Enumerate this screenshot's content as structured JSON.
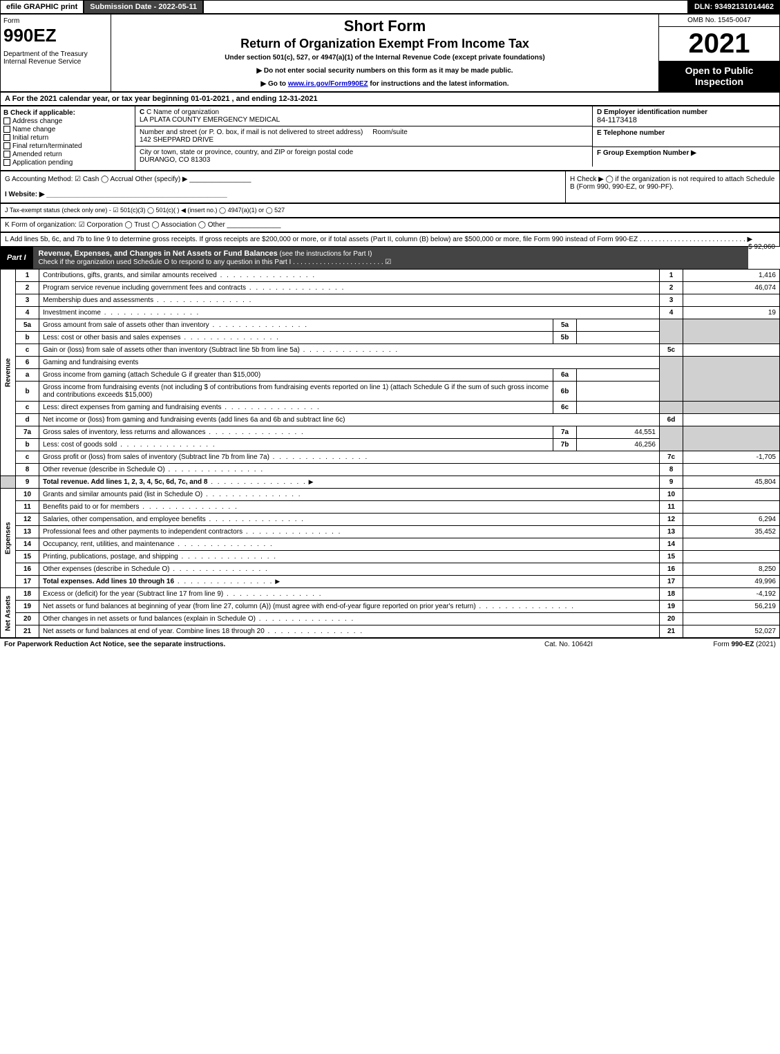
{
  "topbar": {
    "efile": "efile GRAPHIC print",
    "subdate": "Submission Date - 2022-05-11",
    "dln": "DLN: 93492131014462"
  },
  "header": {
    "form_word": "Form",
    "form_no": "990EZ",
    "dept": "Department of the Treasury\nInternal Revenue Service",
    "title1": "Short Form",
    "title2": "Return of Organization Exempt From Income Tax",
    "subtitle": "Under section 501(c), 527, or 4947(a)(1) of the Internal Revenue Code (except private foundations)",
    "instr1": "▶ Do not enter social security numbers on this form as it may be made public.",
    "instr2_pre": "▶ Go to ",
    "instr2_link": "www.irs.gov/Form990EZ",
    "instr2_post": " for instructions and the latest information.",
    "omb": "OMB No. 1545-0047",
    "year": "2021",
    "openbox": "Open to Public Inspection"
  },
  "rowA": "A  For the 2021 calendar year, or tax year beginning 01-01-2021 , and ending 12-31-2021",
  "boxB": {
    "label": "B  Check if applicable:",
    "opts": [
      "Address change",
      "Name change",
      "Initial return",
      "Final return/terminated",
      "Amended return",
      "Application pending"
    ]
  },
  "boxC": {
    "name_lbl": "C Name of organization",
    "name_val": "LA PLATA COUNTY EMERGENCY MEDICAL",
    "addr_lbl": "Number and street (or P. O. box, if mail is not delivered to street address)",
    "room_lbl": "Room/suite",
    "addr_val": "142 SHEPPARD DRIVE",
    "city_lbl": "City or town, state or province, country, and ZIP or foreign postal code",
    "city_val": "DURANGO, CO  81303"
  },
  "boxD": {
    "lbl": "D Employer identification number",
    "val": "84-1173418"
  },
  "boxE": {
    "lbl": "E Telephone number",
    "val": ""
  },
  "boxF": {
    "lbl": "F Group Exemption Number  ▶",
    "val": ""
  },
  "boxG": "G Accounting Method:   ☑ Cash  ◯ Accrual   Other (specify) ▶ ________________",
  "boxH": "H  Check ▶  ◯ if the organization is not required to attach Schedule B (Form 990, 990-EZ, or 990-PF).",
  "boxI": "I Website: ▶ _______________________________________________",
  "boxJ": "J Tax-exempt status (check only one) - ☑ 501(c)(3)  ◯ 501(c)(  ) ◀ (insert no.)  ◯ 4947(a)(1) or  ◯ 527",
  "boxK": "K Form of organization:  ☑ Corporation  ◯ Trust  ◯ Association  ◯ Other  ______________",
  "boxL": {
    "text": "L Add lines 5b, 6c, and 7b to line 9 to determine gross receipts. If gross receipts are $200,000 or more, or if total assets (Part II, column (B) below) are $500,000 or more, file Form 990 instead of Form 990-EZ  .  .  .  .  .  .  .  .  .  .  .  .  .  .  .  .  .  .  .  .  .  .  .  .  .  .  .  .  ▶",
    "amt": "$ 92,060"
  },
  "part1": {
    "label": "Part I",
    "title": "Revenue, Expenses, and Changes in Net Assets or Fund Balances",
    "sub": " (see the instructions for Part I)",
    "check_line": "Check if the organization used Schedule O to respond to any question in this Part I  .  .  .  .  .  .  .  .  .  .  .  .  .  .  .  .  .  .  .  .  .  .  .  .  ☑"
  },
  "sides": {
    "revenue": "Revenue",
    "expenses": "Expenses",
    "netassets": "Net Assets"
  },
  "lines": {
    "l1": {
      "n": "1",
      "t": "Contributions, gifts, grants, and similar amounts received",
      "r": "1",
      "v": "1,416"
    },
    "l2": {
      "n": "2",
      "t": "Program service revenue including government fees and contracts",
      "r": "2",
      "v": "46,074"
    },
    "l3": {
      "n": "3",
      "t": "Membership dues and assessments",
      "r": "3",
      "v": ""
    },
    "l4": {
      "n": "4",
      "t": "Investment income",
      "r": "4",
      "v": "19"
    },
    "l5a": {
      "n": "5a",
      "t": "Gross amount from sale of assets other than inventory",
      "m": "5a",
      "mv": ""
    },
    "l5b": {
      "n": "b",
      "t": "Less: cost or other basis and sales expenses",
      "m": "5b",
      "mv": ""
    },
    "l5c": {
      "n": "c",
      "t": "Gain or (loss) from sale of assets other than inventory (Subtract line 5b from line 5a)",
      "r": "5c",
      "v": ""
    },
    "l6": {
      "n": "6",
      "t": "Gaming and fundraising events"
    },
    "l6a": {
      "n": "a",
      "t": "Gross income from gaming (attach Schedule G if greater than $15,000)",
      "m": "6a",
      "mv": ""
    },
    "l6b": {
      "n": "b",
      "t": "Gross income from fundraising events (not including $                     of contributions from fundraising events reported on line 1) (attach Schedule G if the sum of such gross income and contributions exceeds $15,000)",
      "m": "6b",
      "mv": ""
    },
    "l6c": {
      "n": "c",
      "t": "Less: direct expenses from gaming and fundraising events",
      "m": "6c",
      "mv": ""
    },
    "l6d": {
      "n": "d",
      "t": "Net income or (loss) from gaming and fundraising events (add lines 6a and 6b and subtract line 6c)",
      "r": "6d",
      "v": ""
    },
    "l7a": {
      "n": "7a",
      "t": "Gross sales of inventory, less returns and allowances",
      "m": "7a",
      "mv": "44,551"
    },
    "l7b": {
      "n": "b",
      "t": "Less: cost of goods sold",
      "m": "7b",
      "mv": "46,256"
    },
    "l7c": {
      "n": "c",
      "t": "Gross profit or (loss) from sales of inventory (Subtract line 7b from line 7a)",
      "r": "7c",
      "v": "-1,705"
    },
    "l8": {
      "n": "8",
      "t": "Other revenue (describe in Schedule O)",
      "r": "8",
      "v": ""
    },
    "l9": {
      "n": "9",
      "t": "Total revenue. Add lines 1, 2, 3, 4, 5c, 6d, 7c, and 8",
      "r": "9",
      "v": "45,804",
      "bold": true,
      "arrow": true
    },
    "l10": {
      "n": "10",
      "t": "Grants and similar amounts paid (list in Schedule O)",
      "r": "10",
      "v": ""
    },
    "l11": {
      "n": "11",
      "t": "Benefits paid to or for members",
      "r": "11",
      "v": ""
    },
    "l12": {
      "n": "12",
      "t": "Salaries, other compensation, and employee benefits",
      "r": "12",
      "v": "6,294"
    },
    "l13": {
      "n": "13",
      "t": "Professional fees and other payments to independent contractors",
      "r": "13",
      "v": "35,452"
    },
    "l14": {
      "n": "14",
      "t": "Occupancy, rent, utilities, and maintenance",
      "r": "14",
      "v": ""
    },
    "l15": {
      "n": "15",
      "t": "Printing, publications, postage, and shipping",
      "r": "15",
      "v": ""
    },
    "l16": {
      "n": "16",
      "t": "Other expenses (describe in Schedule O)",
      "r": "16",
      "v": "8,250"
    },
    "l17": {
      "n": "17",
      "t": "Total expenses. Add lines 10 through 16",
      "r": "17",
      "v": "49,996",
      "bold": true,
      "arrow": true
    },
    "l18": {
      "n": "18",
      "t": "Excess or (deficit) for the year (Subtract line 17 from line 9)",
      "r": "18",
      "v": "-4,192"
    },
    "l19": {
      "n": "19",
      "t": "Net assets or fund balances at beginning of year (from line 27, column (A)) (must agree with end-of-year figure reported on prior year's return)",
      "r": "19",
      "v": "56,219"
    },
    "l20": {
      "n": "20",
      "t": "Other changes in net assets or fund balances (explain in Schedule O)",
      "r": "20",
      "v": ""
    },
    "l21": {
      "n": "21",
      "t": "Net assets or fund balances at end of year. Combine lines 18 through 20",
      "r": "21",
      "v": "52,027"
    }
  },
  "footer": {
    "left": "For Paperwork Reduction Act Notice, see the separate instructions.",
    "mid": "Cat. No. 10642I",
    "right": "Form 990-EZ (2021)"
  },
  "colors": {
    "black": "#000000",
    "white": "#ffffff",
    "darkgray": "#444444",
    "shade": "#d0d0d0",
    "link": "#0000cc",
    "checkgreen": "#00aa00"
  }
}
